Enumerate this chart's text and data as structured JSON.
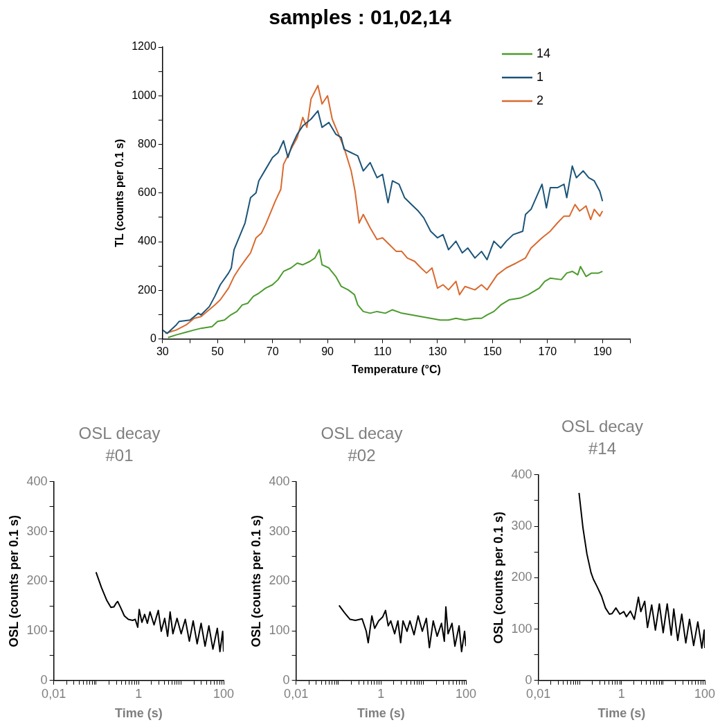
{
  "chart_data": [
    {
      "type": "line",
      "title": "samples : 01,02,14",
      "xlabel": "Temperature (°C)",
      "ylabel": "TL (counts per 0.1 s)",
      "legend": "top right",
      "xlim": [
        30,
        200
      ],
      "xticks": [
        30,
        {
          "value": 40,
          "label": null
        },
        50,
        {
          "value": 60,
          "label": null
        },
        70,
        {
          "value": 80,
          "label": null
        },
        90,
        {
          "value": 100,
          "label": null
        },
        110,
        {
          "value": 120,
          "label": null
        },
        130,
        {
          "value": 140,
          "label": null
        },
        150,
        {
          "value": 160,
          "label": null
        },
        170,
        {
          "value": 180,
          "label": null
        },
        190,
        {
          "value": 200,
          "label": null
        }
      ],
      "ylim": [
        0,
        1200
      ],
      "yticks": [
        0,
        {
          "value": 100,
          "label": null
        },
        200,
        {
          "value": 300,
          "label": null
        },
        400,
        {
          "value": 500,
          "label": null
        },
        600,
        {
          "value": 700,
          "label": null
        },
        800,
        {
          "value": 900,
          "label": null
        },
        1000,
        {
          "value": 1100,
          "label": null
        },
        1200
      ],
      "series": [
        {
          "name": "14",
          "color": "#4b9b2d",
          "x": [
            32,
            35,
            38.6,
            41.5,
            44,
            48,
            50,
            52.5,
            54.8,
            57,
            59,
            61,
            63,
            65,
            67.5,
            70,
            72,
            74,
            76.7,
            79,
            81,
            83.6,
            85.4,
            87,
            88,
            90.5,
            93,
            95,
            97.5,
            99.8,
            101,
            103,
            105.5,
            108,
            111,
            113.6,
            117,
            120.5,
            124,
            127.5,
            131,
            134,
            136.7,
            140,
            143.6,
            146,
            148,
            150.5,
            153,
            156,
            160,
            163,
            167,
            169,
            171,
            175,
            177,
            179,
            181,
            182,
            184,
            186,
            188.6,
            190
          ],
          "values": [
            6,
            17,
            28,
            37,
            44,
            51,
            72,
            78,
            99,
            113,
            140,
            147,
            175,
            188,
            209,
            223,
            244,
            278,
            292,
            312,
            305,
            319,
            333,
            367,
            305,
            292,
            257,
            216,
            202,
            182,
            140,
            113,
            106,
            113,
            106,
            120,
            106,
            99,
            92,
            85,
            78,
            78,
            85,
            78,
            85,
            85,
            99,
            113,
            140,
            161,
            168,
            182,
            209,
            237,
            250,
            244,
            271,
            278,
            264,
            298,
            257,
            271,
            271,
            278
          ]
        },
        {
          "name": "1",
          "color": "#1b5478",
          "x": [
            30,
            31.7,
            35,
            36,
            40,
            43,
            44,
            47,
            49,
            51,
            54,
            55,
            56,
            58,
            60,
            62,
            64,
            65,
            67.5,
            70,
            72,
            74,
            75.6,
            77,
            79,
            81,
            84,
            86.5,
            88,
            90.5,
            93,
            95,
            96,
            98.6,
            101,
            103,
            105.5,
            108,
            110,
            112,
            113.6,
            116,
            118,
            120.5,
            123,
            125,
            127.5,
            130,
            132,
            134,
            136.7,
            139,
            141,
            143.6,
            146,
            148,
            150.5,
            153,
            155,
            157.5,
            161,
            162,
            164,
            168,
            169.6,
            171,
            173.6,
            176,
            177,
            179,
            180.5,
            183,
            185,
            187,
            189,
            190
          ],
          "values": [
            37,
            23,
            58,
            72,
            78,
            106,
            99,
            133,
            175,
            223,
            271,
            292,
            367,
            422,
            477,
            581,
            601,
            650,
            698,
            746,
            766,
            815,
            746,
            794,
            842,
            876,
            904,
            938,
            870,
            890,
            842,
            828,
            780,
            766,
            753,
            691,
            725,
            663,
            677,
            560,
            650,
            636,
            581,
            553,
            526,
            498,
            443,
            416,
            429,
            367,
            402,
            354,
            374,
            333,
            360,
            326,
            402,
            374,
            402,
            429,
            443,
            512,
            533,
            636,
            539,
            622,
            622,
            636,
            581,
            711,
            663,
            691,
            663,
            650,
            608,
            567
          ]
        },
        {
          "name": "2",
          "color": "#d9692e",
          "x": [
            31,
            33,
            35,
            38.6,
            41.5,
            44,
            49,
            51,
            54,
            56,
            58,
            60.6,
            62,
            64,
            66,
            67.5,
            70,
            71,
            73,
            74,
            76.7,
            79,
            81,
            82.5,
            84,
            86.5,
            88,
            90,
            91.7,
            94,
            96,
            98.6,
            100,
            101.5,
            103,
            105.5,
            108,
            110,
            112.5,
            115,
            117,
            119,
            121.7,
            124,
            126,
            128,
            130,
            132,
            134,
            136.7,
            138,
            140,
            143.6,
            146,
            148,
            151.7,
            155,
            158.6,
            162,
            164,
            168,
            171,
            173.6,
            176,
            178,
            180,
            181.7,
            184,
            185.7,
            187,
            189,
            190
          ],
          "values": [
            23,
            30,
            37,
            58,
            85,
            92,
            140,
            161,
            209,
            257,
            292,
            333,
            354,
            416,
            436,
            471,
            539,
            567,
            615,
            718,
            780,
            828,
            911,
            870,
            987,
            1042,
            966,
            1000,
            904,
            842,
            787,
            691,
            608,
            477,
            512,
            457,
            409,
            416,
            388,
            360,
            360,
            333,
            319,
            292,
            271,
            292,
            209,
            223,
            202,
            237,
            182,
            216,
            202,
            223,
            202,
            264,
            292,
            312,
            333,
            374,
            416,
            443,
            477,
            505,
            505,
            553,
            526,
            547,
            491,
            533,
            505,
            526
          ]
        }
      ]
    },
    {
      "type": "line",
      "title": "OSL decay #01",
      "xlabel": "Time (s)",
      "ylabel": "OSL (counts per 0.1 s)",
      "log": "x",
      "xlim": [
        0.01,
        100
      ],
      "xticks": [
        {
          "value": 0.01,
          "label": "0,01"
        },
        {
          "value": 0.02,
          "label": null
        },
        {
          "value": 0.03,
          "label": null
        },
        {
          "value": 0.04,
          "label": null
        },
        {
          "value": 0.05,
          "label": null
        },
        {
          "value": 0.06,
          "label": null
        },
        {
          "value": 0.07,
          "label": null
        },
        {
          "value": 0.08,
          "label": null
        },
        {
          "value": 0.09,
          "label": null
        },
        {
          "value": 0.1,
          "label": null
        },
        {
          "value": 0.2,
          "label": null
        },
        {
          "value": 0.3,
          "label": null
        },
        {
          "value": 0.4,
          "label": null
        },
        {
          "value": 0.5,
          "label": null
        },
        {
          "value": 0.6,
          "label": null
        },
        {
          "value": 0.7,
          "label": null
        },
        {
          "value": 0.8,
          "label": null
        },
        {
          "value": 0.9,
          "label": null
        },
        1,
        {
          "value": 2,
          "label": null
        },
        {
          "value": 3,
          "label": null
        },
        {
          "value": 4,
          "label": null
        },
        {
          "value": 5,
          "label": null
        },
        {
          "value": 6,
          "label": null
        },
        {
          "value": 7,
          "label": null
        },
        {
          "value": 8,
          "label": null
        },
        {
          "value": 9,
          "label": null
        },
        {
          "value": 10,
          "label": null
        },
        {
          "value": 20,
          "label": null
        },
        {
          "value": 30,
          "label": null
        },
        {
          "value": 40,
          "label": null
        },
        {
          "value": 50,
          "label": null
        },
        {
          "value": 60,
          "label": null
        },
        {
          "value": 70,
          "label": null
        },
        {
          "value": 80,
          "label": null
        },
        {
          "value": 90,
          "label": null
        },
        100
      ],
      "ylim": [
        0,
        400
      ],
      "yticks": [
        0,
        {
          "value": 50,
          "label": null
        },
        100,
        {
          "value": 150,
          "label": null
        },
        200,
        {
          "value": 250,
          "label": null
        },
        300,
        {
          "value": 350,
          "label": null
        },
        400
      ],
      "series": [
        {
          "color": "#000000",
          "x": [
            0.099,
            0.133,
            0.178,
            0.222,
            0.26,
            0.297,
            0.32,
            0.37,
            0.46,
            0.57,
            0.72,
            0.83,
            0.95,
            1.03,
            1.19,
            1.38,
            1.6,
            1.85,
            2.3,
            2.9,
            3.4,
            4.1,
            4.8,
            5.5,
            6.4,
            8,
            10,
            12.5,
            15.6,
            19.2,
            23.8,
            29.5,
            36.6,
            45,
            56,
            71,
            82,
            95,
            100
          ],
          "values": [
            218,
            187,
            161,
            147,
            148,
            156,
            159,
            148,
            130,
            123,
            121,
            123,
            107,
            143,
            117,
            133,
            115,
            138,
            112,
            141,
            99,
            125,
            89,
            138,
            94,
            125,
            94,
            123,
            79,
            120,
            74,
            115,
            69,
            110,
            63,
            105,
            58,
            99,
            58
          ]
        }
      ]
    },
    {
      "type": "line",
      "title": "OSL decay #02",
      "xlabel": "Time (s)",
      "ylabel": "OSL (counts per 0.1 s)",
      "log": "x",
      "xlim": [
        0.01,
        100
      ],
      "xticks": [
        {
          "value": 0.01,
          "label": "0,01"
        },
        {
          "value": 0.02,
          "label": null
        },
        {
          "value": 0.03,
          "label": null
        },
        {
          "value": 0.04,
          "label": null
        },
        {
          "value": 0.05,
          "label": null
        },
        {
          "value": 0.06,
          "label": null
        },
        {
          "value": 0.07,
          "label": null
        },
        {
          "value": 0.08,
          "label": null
        },
        {
          "value": 0.09,
          "label": null
        },
        {
          "value": 0.1,
          "label": null
        },
        {
          "value": 0.2,
          "label": null
        },
        {
          "value": 0.3,
          "label": null
        },
        {
          "value": 0.4,
          "label": null
        },
        {
          "value": 0.5,
          "label": null
        },
        {
          "value": 0.6,
          "label": null
        },
        {
          "value": 0.7,
          "label": null
        },
        {
          "value": 0.8,
          "label": null
        },
        {
          "value": 0.9,
          "label": null
        },
        1,
        {
          "value": 2,
          "label": null
        },
        {
          "value": 3,
          "label": null
        },
        {
          "value": 4,
          "label": null
        },
        {
          "value": 5,
          "label": null
        },
        {
          "value": 6,
          "label": null
        },
        {
          "value": 7,
          "label": null
        },
        {
          "value": 8,
          "label": null
        },
        {
          "value": 9,
          "label": null
        },
        {
          "value": 10,
          "label": null
        },
        {
          "value": 20,
          "label": null
        },
        {
          "value": 30,
          "label": null
        },
        {
          "value": 40,
          "label": null
        },
        {
          "value": 50,
          "label": null
        },
        {
          "value": 60,
          "label": null
        },
        {
          "value": 70,
          "label": null
        },
        {
          "value": 80,
          "label": null
        },
        {
          "value": 90,
          "label": null
        },
        100
      ],
      "ylim": [
        0,
        400
      ],
      "yticks": [
        0,
        {
          "value": 50,
          "label": null
        },
        100,
        {
          "value": 150,
          "label": null
        },
        200,
        {
          "value": 250,
          "label": null
        },
        300,
        {
          "value": 350,
          "label": null
        },
        400
      ],
      "series": [
        {
          "color": "#000000",
          "x": [
            0.103,
            0.139,
            0.187,
            0.25,
            0.36,
            0.45,
            0.5,
            0.61,
            0.71,
            0.88,
            1.1,
            1.28,
            1.48,
            1.7,
            2.1,
            2.5,
            2.9,
            3.3,
            4.1,
            4.8,
            6,
            7.5,
            9.4,
            11.7,
            13.8,
            17,
            21,
            26.6,
            31,
            33.7,
            38,
            47,
            55,
            69,
            79,
            93,
            100
          ],
          "values": [
            151,
            136,
            123,
            121,
            124,
            99,
            76,
            130,
            105,
            120,
            128,
            141,
            110,
            120,
            94,
            120,
            76,
            120,
            99,
            120,
            92,
            130,
            99,
            125,
            66,
            120,
            89,
            115,
            79,
            148,
            94,
            115,
            69,
            110,
            58,
            99,
            69
          ]
        }
      ]
    },
    {
      "type": "line",
      "title": "OSL decay #14",
      "xlabel": "Time (s)",
      "ylabel": "OSL (counts per 0.1 s)",
      "log": "x",
      "xlim": [
        0.01,
        100
      ],
      "xticks": [
        {
          "value": 0.01,
          "label": "0,01"
        },
        {
          "value": 0.02,
          "label": null
        },
        {
          "value": 0.03,
          "label": null
        },
        {
          "value": 0.04,
          "label": null
        },
        {
          "value": 0.05,
          "label": null
        },
        {
          "value": 0.06,
          "label": null
        },
        {
          "value": 0.07,
          "label": null
        },
        {
          "value": 0.08,
          "label": null
        },
        {
          "value": 0.09,
          "label": null
        },
        {
          "value": 0.1,
          "label": null
        },
        {
          "value": 0.2,
          "label": null
        },
        {
          "value": 0.3,
          "label": null
        },
        {
          "value": 0.4,
          "label": null
        },
        {
          "value": 0.5,
          "label": null
        },
        {
          "value": 0.6,
          "label": null
        },
        {
          "value": 0.7,
          "label": null
        },
        {
          "value": 0.8,
          "label": null
        },
        {
          "value": 0.9,
          "label": null
        },
        1,
        {
          "value": 2,
          "label": null
        },
        {
          "value": 3,
          "label": null
        },
        {
          "value": 4,
          "label": null
        },
        {
          "value": 5,
          "label": null
        },
        {
          "value": 6,
          "label": null
        },
        {
          "value": 7,
          "label": null
        },
        {
          "value": 8,
          "label": null
        },
        {
          "value": 9,
          "label": null
        },
        {
          "value": 10,
          "label": null
        },
        {
          "value": 20,
          "label": null
        },
        {
          "value": 30,
          "label": null
        },
        {
          "value": 40,
          "label": null
        },
        {
          "value": 50,
          "label": null
        },
        {
          "value": 60,
          "label": null
        },
        {
          "value": 70,
          "label": null
        },
        {
          "value": 80,
          "label": null
        },
        {
          "value": 90,
          "label": null
        },
        100
      ],
      "ylim": [
        0,
        400
      ],
      "yticks": [
        0,
        {
          "value": 50,
          "label": null
        },
        100,
        {
          "value": 150,
          "label": null
        },
        200,
        {
          "value": 250,
          "label": null
        },
        300,
        {
          "value": 350,
          "label": null
        },
        400
      ],
      "series": [
        {
          "color": "#000000",
          "x": [
            0.095,
            0.118,
            0.147,
            0.184,
            0.21,
            0.26,
            0.33,
            0.41,
            0.51,
            0.59,
            0.73,
            0.91,
            1.13,
            1.31,
            1.63,
            2.03,
            2.54,
            2.9,
            3.6,
            4.2,
            5.3,
            6.5,
            8.1,
            10,
            12.5,
            15.6,
            18,
            22.4,
            28,
            35,
            43,
            54,
            68,
            85,
            97,
            100
          ],
          "values": [
            365,
            297,
            246,
            210,
            197,
            182,
            164,
            141,
            129,
            130,
            141,
            129,
            134,
            124,
            135,
            119,
            162,
            134,
            154,
            103,
            147,
            98,
            149,
            93,
            149,
            88,
            139,
            78,
            129,
            73,
            119,
            68,
            114,
            63,
            98,
            63
          ]
        }
      ]
    }
  ]
}
